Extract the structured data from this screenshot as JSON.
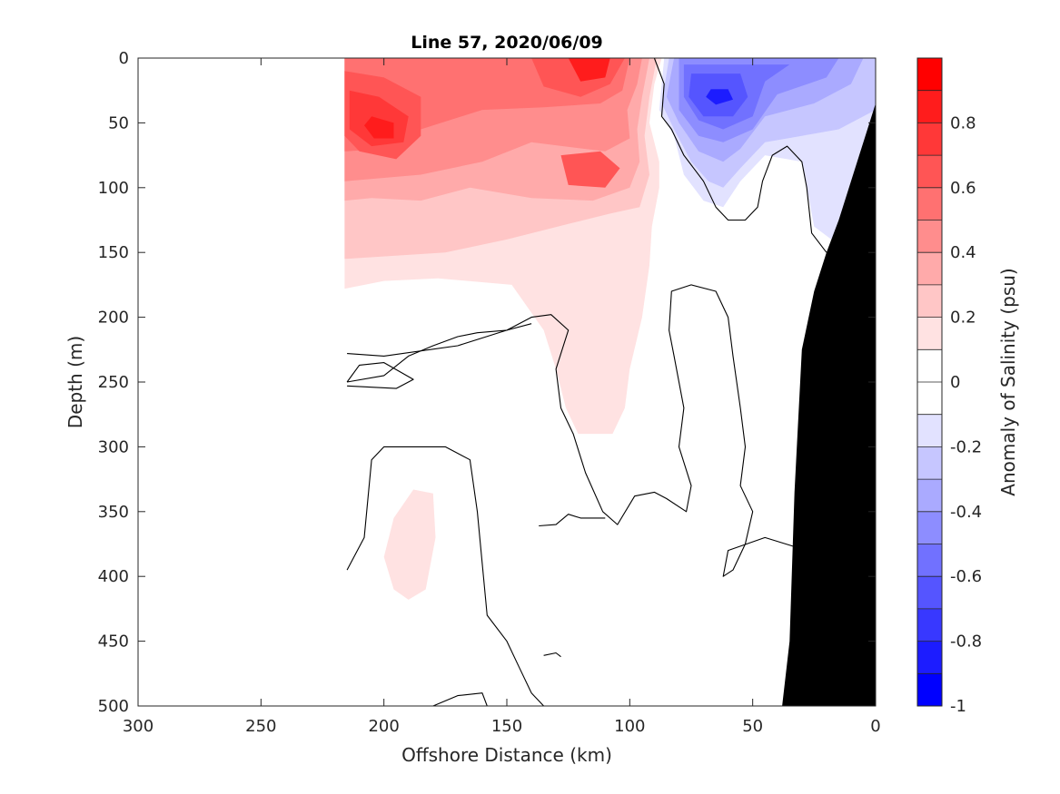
{
  "chart_data": {
    "type": "heatmap",
    "title": "Line 57, 2020/06/09",
    "xlabel": "Offshore Distance (km)",
    "ylabel": "Depth (m)",
    "colorbar_label": "Anomaly of Salinity (psu)",
    "xlim": [
      300,
      0
    ],
    "ylim": [
      0,
      500
    ],
    "x_ticks": [
      300,
      250,
      200,
      150,
      100,
      50,
      0
    ],
    "y_ticks": [
      0,
      50,
      100,
      150,
      200,
      250,
      300,
      350,
      400,
      450,
      500
    ],
    "colorbar": {
      "range": [
        -1,
        1
      ],
      "ticks": [
        "0.8",
        "0.6",
        "0.4",
        "0.2",
        "0",
        "-0.2",
        "-0.4",
        "-0.6",
        "-0.8",
        "-1"
      ],
      "levels": [
        {
          "from": 0.9,
          "to": 1.0,
          "color": "#ff0000"
        },
        {
          "from": 0.8,
          "to": 0.9,
          "color": "#ff1c1c"
        },
        {
          "from": 0.7,
          "to": 0.8,
          "color": "#ff3838"
        },
        {
          "from": 0.6,
          "to": 0.7,
          "color": "#ff5555"
        },
        {
          "from": 0.5,
          "to": 0.6,
          "color": "#ff7171"
        },
        {
          "from": 0.4,
          "to": 0.5,
          "color": "#ff8d8d"
        },
        {
          "from": 0.3,
          "to": 0.4,
          "color": "#ffaaaa"
        },
        {
          "from": 0.2,
          "to": 0.3,
          "color": "#ffc6c6"
        },
        {
          "from": 0.1,
          "to": 0.2,
          "color": "#ffe2e2"
        },
        {
          "from": 0.0,
          "to": 0.1,
          "color": "#ffffff"
        },
        {
          "from": -0.1,
          "to": 0.0,
          "color": "#ffffff"
        },
        {
          "from": -0.2,
          "to": -0.1,
          "color": "#e2e2ff"
        },
        {
          "from": -0.3,
          "to": -0.2,
          "color": "#c6c6ff"
        },
        {
          "from": -0.4,
          "to": -0.3,
          "color": "#aaaaff"
        },
        {
          "from": -0.5,
          "to": -0.4,
          "color": "#8d8dff"
        },
        {
          "from": -0.6,
          "to": -0.5,
          "color": "#7171ff"
        },
        {
          "from": -0.7,
          "to": -0.6,
          "color": "#5555ff"
        },
        {
          "from": -0.8,
          "to": -0.7,
          "color": "#3838ff"
        },
        {
          "from": -0.9,
          "to": -0.8,
          "color": "#1c1c ff"
        },
        {
          "from": -1.0,
          "to": -0.9,
          "color": "#0000ff"
        }
      ]
    },
    "regions": [
      {
        "name": "positive-0.1",
        "color": "#ffe2e2",
        "points": [
          [
            216,
            0
          ],
          [
            87,
            0
          ],
          [
            90,
            20
          ],
          [
            92,
            50
          ],
          [
            88,
            80
          ],
          [
            88,
            100
          ],
          [
            91,
            130
          ],
          [
            92,
            160
          ],
          [
            95,
            200
          ],
          [
            100,
            240
          ],
          [
            102,
            270
          ],
          [
            107,
            290
          ],
          [
            121,
            290
          ],
          [
            126,
            270
          ],
          [
            130,
            240
          ],
          [
            135,
            210
          ],
          [
            148,
            175
          ],
          [
            178,
            170
          ],
          [
            200,
            172
          ],
          [
            216,
            178
          ]
        ]
      },
      {
        "name": "positive-0.1-deep",
        "color": "#ffe2e2",
        "points": [
          [
            188,
            333
          ],
          [
            180,
            336
          ],
          [
            179,
            370
          ],
          [
            183,
            410
          ],
          [
            190,
            418
          ],
          [
            196,
            410
          ],
          [
            200,
            385
          ],
          [
            196,
            355
          ]
        ]
      },
      {
        "name": "positive-0.2",
        "color": "#ffc6c6",
        "points": [
          [
            216,
            0
          ],
          [
            89,
            0
          ],
          [
            92,
            30
          ],
          [
            94,
            60
          ],
          [
            92,
            90
          ],
          [
            96,
            115
          ],
          [
            108,
            120
          ],
          [
            125,
            128
          ],
          [
            150,
            140
          ],
          [
            175,
            150
          ],
          [
            216,
            155
          ]
        ]
      },
      {
        "name": "positive-0.3",
        "color": "#ffaaaa",
        "points": [
          [
            216,
            0
          ],
          [
            92,
            0
          ],
          [
            95,
            30
          ],
          [
            97,
            55
          ],
          [
            96,
            80
          ],
          [
            100,
            100
          ],
          [
            115,
            110
          ],
          [
            140,
            108
          ],
          [
            165,
            100
          ],
          [
            185,
            110
          ],
          [
            205,
            108
          ],
          [
            216,
            110
          ]
        ]
      },
      {
        "name": "positive-0.4",
        "color": "#ff8d8d",
        "points": [
          [
            216,
            0
          ],
          [
            95,
            0
          ],
          [
            97,
            20
          ],
          [
            101,
            40
          ],
          [
            100,
            62
          ],
          [
            110,
            72
          ],
          [
            140,
            65
          ],
          [
            160,
            80
          ],
          [
            185,
            90
          ],
          [
            216,
            95
          ]
        ]
      },
      {
        "name": "positive-0.5",
        "color": "#ff7171",
        "points": [
          [
            216,
            0
          ],
          [
            100,
            0
          ],
          [
            103,
            25
          ],
          [
            112,
            35
          ],
          [
            135,
            38
          ],
          [
            160,
            40
          ],
          [
            185,
            55
          ],
          [
            200,
            70
          ],
          [
            216,
            72
          ]
        ]
      },
      {
        "name": "positive-0.6a",
        "color": "#ff5555",
        "points": [
          [
            216,
            10
          ],
          [
            200,
            15
          ],
          [
            185,
            30
          ],
          [
            185,
            60
          ],
          [
            195,
            78
          ],
          [
            210,
            72
          ],
          [
            216,
            60
          ]
        ]
      },
      {
        "name": "positive-0.7a",
        "color": "#ff3838",
        "points": [
          [
            214,
            25
          ],
          [
            202,
            30
          ],
          [
            190,
            45
          ],
          [
            192,
            65
          ],
          [
            205,
            68
          ],
          [
            214,
            55
          ]
        ]
      },
      {
        "name": "positive-0.8a",
        "color": "#ff1c1c",
        "points": [
          [
            205,
            45
          ],
          [
            196,
            50
          ],
          [
            196,
            62
          ],
          [
            204,
            62
          ],
          [
            208,
            52
          ]
        ]
      },
      {
        "name": "positive-0.6b",
        "color": "#ff5555",
        "points": [
          [
            140,
            0
          ],
          [
            102,
            0
          ],
          [
            108,
            20
          ],
          [
            120,
            30
          ],
          [
            135,
            22
          ]
        ]
      },
      {
        "name": "positive-0.8b",
        "color": "#ff1c1c",
        "points": [
          [
            125,
            0
          ],
          [
            108,
            0
          ],
          [
            110,
            15
          ],
          [
            120,
            18
          ]
        ]
      },
      {
        "name": "positive-0.6c",
        "color": "#ff5555",
        "points": [
          [
            128,
            75
          ],
          [
            112,
            72
          ],
          [
            104,
            85
          ],
          [
            110,
            100
          ],
          [
            125,
            98
          ]
        ]
      },
      {
        "name": "negative-0.1",
        "color": "#e2e2ff",
        "points": [
          [
            86,
            0
          ],
          [
            0,
            0
          ],
          [
            0,
            60
          ],
          [
            8,
            100
          ],
          [
            15,
            130
          ],
          [
            18,
            140
          ],
          [
            25,
            130
          ],
          [
            28,
            100
          ],
          [
            30,
            80
          ],
          [
            45,
            75
          ],
          [
            55,
            95
          ],
          [
            62,
            115
          ],
          [
            70,
            110
          ],
          [
            78,
            90
          ],
          [
            82,
            60
          ],
          [
            88,
            40
          ]
        ]
      },
      {
        "name": "negative-0.2",
        "color": "#c6c6ff",
        "points": [
          [
            84,
            0
          ],
          [
            0,
            0
          ],
          [
            0,
            40
          ],
          [
            15,
            55
          ],
          [
            30,
            60
          ],
          [
            45,
            65
          ],
          [
            55,
            85
          ],
          [
            62,
            100
          ],
          [
            68,
            95
          ],
          [
            75,
            80
          ],
          [
            82,
            55
          ],
          [
            87,
            35
          ]
        ]
      },
      {
        "name": "negative-0.3",
        "color": "#aaaaff",
        "points": [
          [
            82,
            0
          ],
          [
            5,
            0
          ],
          [
            10,
            20
          ],
          [
            25,
            35
          ],
          [
            45,
            45
          ],
          [
            55,
            70
          ],
          [
            62,
            80
          ],
          [
            72,
            72
          ],
          [
            80,
            50
          ],
          [
            85,
            30
          ]
        ]
      },
      {
        "name": "negative-0.4",
        "color": "#8d8dff",
        "points": [
          [
            80,
            0
          ],
          [
            15,
            0
          ],
          [
            20,
            15
          ],
          [
            40,
            28
          ],
          [
            50,
            55
          ],
          [
            62,
            65
          ],
          [
            72,
            60
          ],
          [
            80,
            40
          ]
        ]
      },
      {
        "name": "negative-0.5",
        "color": "#7171ff",
        "points": [
          [
            78,
            5
          ],
          [
            35,
            5
          ],
          [
            45,
            18
          ],
          [
            50,
            45
          ],
          [
            62,
            55
          ],
          [
            72,
            48
          ],
          [
            78,
            30
          ]
        ]
      },
      {
        "name": "negative-0.6",
        "color": "#5555ff",
        "points": [
          [
            75,
            12
          ],
          [
            55,
            12
          ],
          [
            52,
            30
          ],
          [
            58,
            45
          ],
          [
            70,
            45
          ],
          [
            76,
            30
          ]
        ]
      },
      {
        "name": "negative-0.8",
        "color": "#1c1cff",
        "points": [
          [
            67,
            24
          ],
          [
            60,
            24
          ],
          [
            58,
            32
          ],
          [
            65,
            36
          ],
          [
            69,
            30
          ]
        ]
      }
    ],
    "zero_contours": [
      [
        [
          90,
          0
        ],
        [
          86,
          20
        ],
        [
          87,
          45
        ],
        [
          83,
          55
        ],
        [
          78,
          75
        ],
        [
          70,
          95
        ],
        [
          65,
          115
        ],
        [
          60,
          125
        ],
        [
          53,
          125
        ],
        [
          48,
          115
        ],
        [
          46,
          95
        ],
        [
          42,
          75
        ],
        [
          36,
          68
        ],
        [
          30,
          80
        ],
        [
          28,
          100
        ],
        [
          26,
          135
        ],
        [
          20,
          150
        ]
      ],
      [
        [
          215,
          228
        ],
        [
          200,
          230
        ],
        [
          170,
          222
        ],
        [
          150,
          210
        ],
        [
          140,
          200
        ],
        [
          132,
          198
        ],
        [
          125,
          210
        ],
        [
          130,
          240
        ],
        [
          128,
          270
        ],
        [
          123,
          290
        ],
        [
          118,
          320
        ],
        [
          111,
          350
        ],
        [
          105,
          360
        ],
        [
          98,
          338
        ],
        [
          90,
          335
        ],
        [
          85,
          340
        ],
        [
          77,
          350
        ],
        [
          75,
          330
        ],
        [
          80,
          300
        ],
        [
          78,
          270
        ],
        [
          80,
          250
        ],
        [
          82,
          230
        ],
        [
          84,
          210
        ],
        [
          83,
          180
        ],
        [
          75,
          175
        ],
        [
          65,
          180
        ],
        [
          60,
          200
        ],
        [
          58,
          230
        ],
        [
          55,
          270
        ],
        [
          53,
          300
        ],
        [
          55,
          330
        ],
        [
          50,
          350
        ],
        [
          53,
          375
        ],
        [
          58,
          395
        ],
        [
          62,
          400
        ],
        [
          60,
          380
        ],
        [
          45,
          370
        ],
        [
          28,
          380
        ],
        [
          25,
          400
        ],
        [
          20,
          420
        ],
        [
          20,
          500
        ]
      ],
      [
        [
          215,
          250
        ],
        [
          200,
          245
        ],
        [
          190,
          230
        ],
        [
          180,
          222
        ],
        [
          170,
          215
        ],
        [
          162,
          212
        ],
        [
          150,
          210
        ],
        [
          140,
          205
        ]
      ],
      [
        [
          215,
          395
        ],
        [
          208,
          370
        ],
        [
          205,
          310
        ],
        [
          200,
          300
        ],
        [
          175,
          300
        ],
        [
          165,
          310
        ],
        [
          162,
          350
        ],
        [
          160,
          390
        ],
        [
          158,
          430
        ],
        [
          150,
          450
        ],
        [
          145,
          470
        ],
        [
          140,
          490
        ],
        [
          135,
          500
        ]
      ],
      [
        [
          180,
          500
        ],
        [
          170,
          492
        ],
        [
          160,
          490
        ],
        [
          158,
          500
        ]
      ],
      [
        [
          215,
          250
        ],
        [
          210,
          237
        ],
        [
          200,
          235
        ],
        [
          188,
          248
        ],
        [
          195,
          255
        ],
        [
          215,
          253
        ]
      ],
      [
        [
          137,
          361
        ],
        [
          130,
          360
        ],
        [
          125,
          352
        ],
        [
          120,
          355
        ],
        [
          110,
          355
        ]
      ],
      [
        [
          135,
          461
        ],
        [
          130,
          459
        ],
        [
          128,
          462
        ]
      ]
    ],
    "bathymetry": {
      "color": "#000000",
      "points": [
        [
          0,
          35
        ],
        [
          5,
          65
        ],
        [
          10,
          95
        ],
        [
          15,
          125
        ],
        [
          20,
          150
        ],
        [
          25,
          180
        ],
        [
          30,
          225
        ],
        [
          33,
          335
        ],
        [
          35,
          450
        ],
        [
          38,
          500
        ],
        [
          0,
          500
        ]
      ]
    },
    "data_start_x": 216
  }
}
